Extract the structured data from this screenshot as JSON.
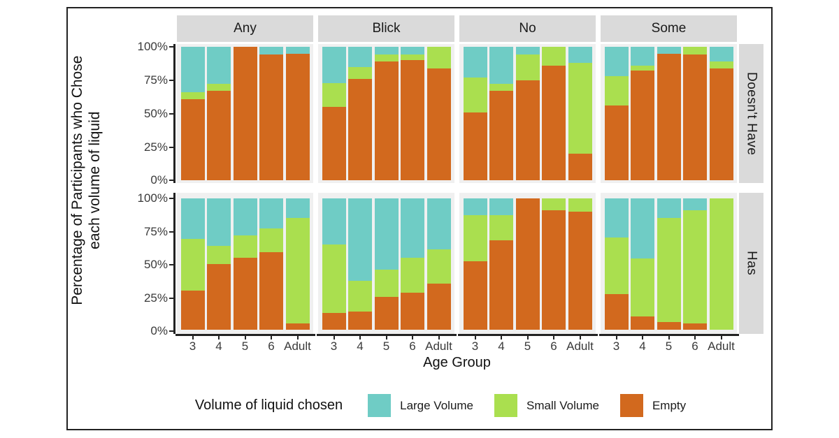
{
  "figure": {
    "y_axis_title": "Percentage of Participants who Chose\neach volume of liquid",
    "x_axis_title": "Age Group",
    "y_ticks": [
      "100%",
      "75%",
      "50%",
      "25%",
      "0%"
    ],
    "col_facets": [
      "Any",
      "Blick",
      "No",
      "Some"
    ],
    "row_facets": [
      "Doesn't Have",
      "Has"
    ],
    "legend": {
      "title": "Volume of liquid chosen",
      "items": [
        {
          "key": "large",
          "label": "Large Volume"
        },
        {
          "key": "small",
          "label": "Small Volume"
        },
        {
          "key": "empty",
          "label": "Empty"
        }
      ]
    }
  },
  "chart_data": {
    "type": "bar",
    "stacked": true,
    "percent": true,
    "title": "",
    "xlabel": "Age Group",
    "ylabel": "Percentage of Participants who Chose each volume of liquid",
    "ylim": [
      0,
      100
    ],
    "grid": false,
    "legend_position": "bottom",
    "categories": [
      "3",
      "4",
      "5",
      "6",
      "Adult"
    ],
    "colors": {
      "large": "#6fccc5",
      "small": "#aadf4f",
      "empty": "#d2691e"
    },
    "series_names": {
      "large": "Large Volume",
      "small": "Small Volume",
      "empty": "Empty"
    },
    "panels": [
      {
        "row": "Doesn't Have",
        "col": "Any",
        "large": [
          34,
          28,
          0,
          6,
          5
        ],
        "small": [
          5,
          5,
          0,
          0,
          0
        ],
        "empty": [
          61,
          67,
          100,
          94,
          95
        ]
      },
      {
        "row": "Doesn't Have",
        "col": "Blick",
        "large": [
          27,
          15,
          6,
          6,
          0
        ],
        "small": [
          18,
          9,
          5,
          4,
          16
        ],
        "empty": [
          55,
          76,
          89,
          90,
          84
        ]
      },
      {
        "row": "Doesn't Have",
        "col": "No",
        "large": [
          23,
          28,
          6,
          0,
          12
        ],
        "small": [
          26,
          5,
          19,
          14,
          68
        ],
        "empty": [
          51,
          67,
          75,
          86,
          20
        ]
      },
      {
        "row": "Doesn't Have",
        "col": "Some",
        "large": [
          22,
          14,
          5,
          0,
          11
        ],
        "small": [
          22,
          4,
          0,
          6,
          5
        ],
        "empty": [
          56,
          82,
          95,
          94,
          84
        ]
      },
      {
        "row": "Has",
        "col": "Any",
        "large": [
          31,
          36,
          28,
          23,
          15
        ],
        "small": [
          39,
          14,
          17,
          18,
          80
        ],
        "empty": [
          30,
          50,
          55,
          59,
          5
        ]
      },
      {
        "row": "Has",
        "col": "Blick",
        "large": [
          35,
          63,
          54,
          45,
          39
        ],
        "small": [
          52,
          23,
          21,
          27,
          26
        ],
        "empty": [
          13,
          14,
          25,
          28,
          35
        ]
      },
      {
        "row": "Has",
        "col": "No",
        "large": [
          13,
          13,
          0,
          0,
          0
        ],
        "small": [
          35,
          19,
          0,
          9,
          10
        ],
        "empty": [
          52,
          68,
          100,
          91,
          90
        ]
      },
      {
        "row": "Has",
        "col": "Some",
        "large": [
          30,
          46,
          15,
          9,
          0
        ],
        "small": [
          43,
          44,
          79,
          86,
          100
        ],
        "empty": [
          27,
          10,
          6,
          5,
          0
        ]
      }
    ]
  }
}
